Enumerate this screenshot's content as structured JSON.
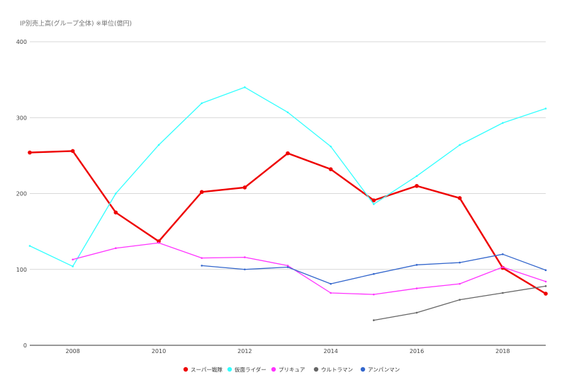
{
  "chart_data": {
    "type": "line",
    "title": "IP別売上高(グループ全体) ※単位(億円)",
    "xlabel": "",
    "ylabel": "",
    "x": [
      2007,
      2008,
      2009,
      2010,
      2011,
      2012,
      2013,
      2014,
      2015,
      2016,
      2017,
      2018,
      2019
    ],
    "xlim": [
      2007,
      2019
    ],
    "ylim": [
      0,
      400
    ],
    "x_ticks": [
      "2008",
      "2010",
      "2012",
      "2014",
      "2016",
      "2018"
    ],
    "y_ticks": [
      "0",
      "100",
      "200",
      "300",
      "400"
    ],
    "grid": "horizontal",
    "legend_position": "bottom",
    "series": [
      {
        "name": "スーパー戦隊",
        "color": "#ee0000",
        "values": [
          254,
          256,
          175,
          137,
          202,
          208,
          253,
          232,
          191,
          210,
          194,
          102,
          68
        ]
      },
      {
        "name": "仮面ライダー",
        "color": "#33ffff",
        "values": [
          131,
          104,
          200,
          264,
          319,
          340,
          307,
          262,
          186,
          223,
          264,
          293,
          312
        ]
      },
      {
        "name": "プリキュア",
        "color": "#ff33ff",
        "values": [
          null,
          113,
          128,
          135,
          115,
          116,
          105,
          69,
          67,
          75,
          81,
          103,
          84
        ]
      },
      {
        "name": "ウルトラマン",
        "color": "#666666",
        "values": [
          null,
          null,
          null,
          null,
          null,
          null,
          null,
          null,
          33,
          43,
          60,
          69,
          78
        ]
      },
      {
        "name": "アンパンマン",
        "color": "#3366cc",
        "values": [
          null,
          null,
          null,
          null,
          105,
          100,
          103,
          81,
          94,
          106,
          109,
          120,
          99
        ]
      }
    ]
  }
}
